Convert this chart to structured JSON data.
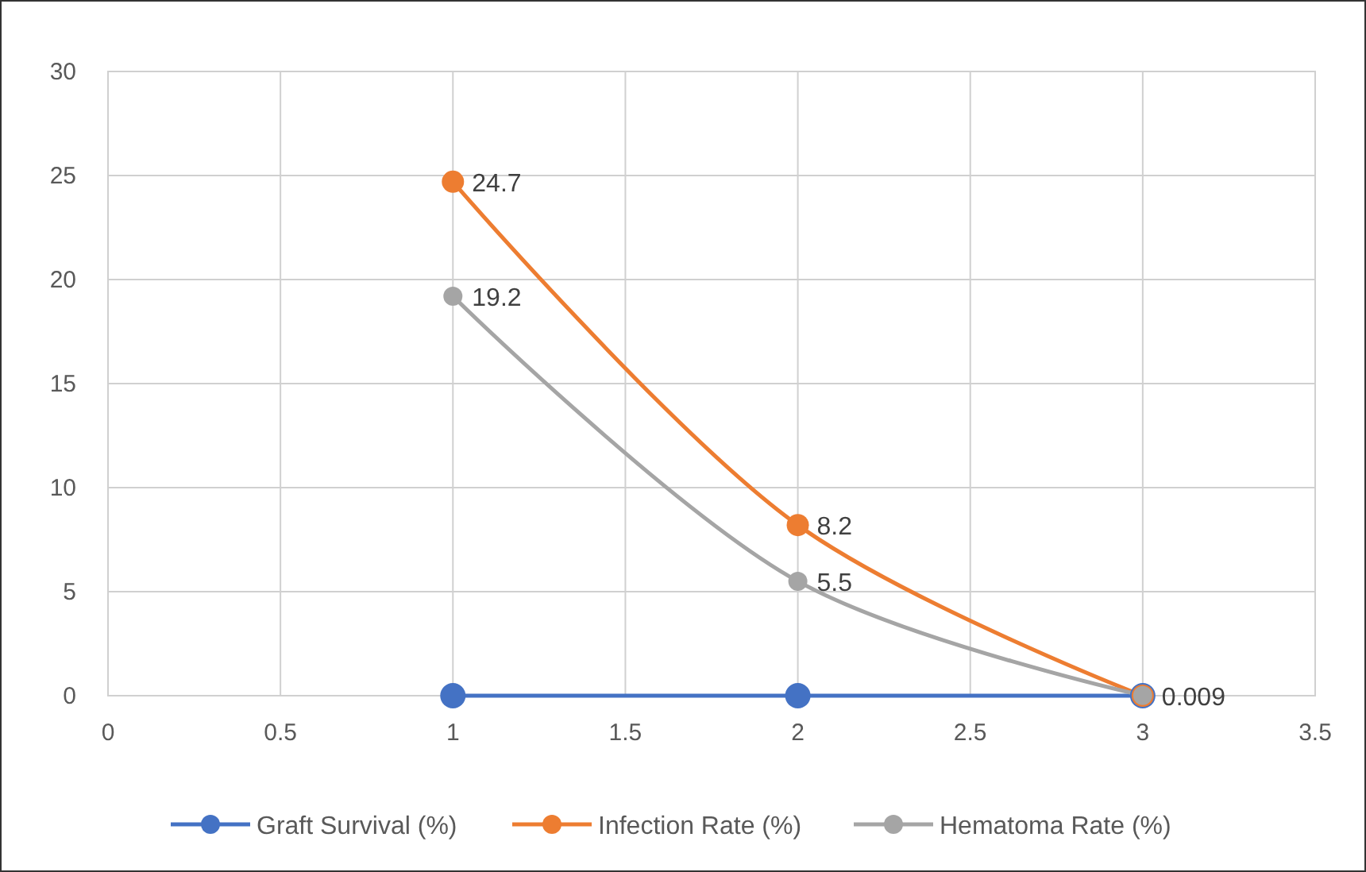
{
  "chart_data": {
    "type": "line",
    "x": [
      1,
      2,
      3
    ],
    "xlim": [
      0,
      3.5
    ],
    "xticks": [
      0,
      0.5,
      1,
      1.5,
      2,
      2.5,
      3,
      3.5
    ],
    "ylim": [
      0,
      30
    ],
    "yticks": [
      0,
      5,
      10,
      15,
      20,
      25,
      30
    ],
    "grid": true,
    "legend": "bottom",
    "marker": "circle",
    "line_style": "solid",
    "series": [
      {
        "name": "Graft Survival (%)",
        "color": "#4472c4",
        "values": [
          0,
          0,
          0
        ]
      },
      {
        "name": "Infection Rate (%)",
        "color": "#ed7d31",
        "values": [
          24.7,
          8.2,
          0
        ],
        "value_labels": [
          "24.7",
          "8.2",
          null
        ]
      },
      {
        "name": "Hematoma Rate (%)",
        "color": "#a5a5a5",
        "values": [
          19.2,
          5.5,
          0.009
        ],
        "value_labels": [
          "19.2",
          "5.5",
          "0.009"
        ]
      }
    ]
  }
}
